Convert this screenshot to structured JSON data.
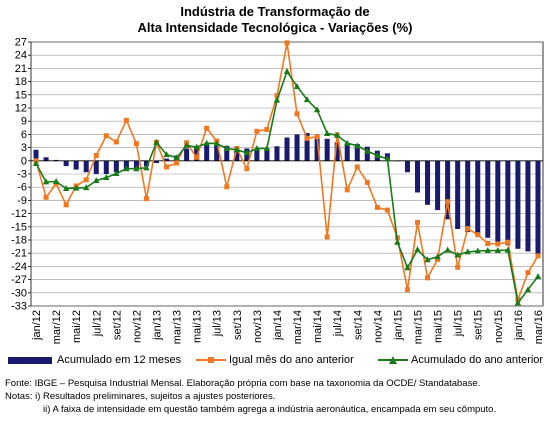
{
  "chart_data": {
    "type": "bar+line",
    "title": [
      "Indústria de Transformação de",
      "Alta Intensidade Tecnológica - Variações (%)"
    ],
    "x": [
      "jan/12",
      "fev/12",
      "mar/12",
      "abr/12",
      "mai/12",
      "jun/12",
      "jul/12",
      "ago/12",
      "set/12",
      "out/12",
      "nov/12",
      "dez/12",
      "jan/13",
      "fev/13",
      "mar/13",
      "abr/13",
      "mai/13",
      "jun/13",
      "jul/13",
      "ago/13",
      "set/13",
      "out/13",
      "nov/13",
      "dez/13",
      "jan/14",
      "fev/14",
      "mar/14",
      "abr/14",
      "mai/14",
      "jun/14",
      "jul/14",
      "ago/14",
      "set/14",
      "out/14",
      "nov/14",
      "dez/14",
      "jan/15",
      "fev/15",
      "mar/15",
      "abr/15",
      "mai/15",
      "jun/15",
      "jul/15",
      "ago/15",
      "set/15",
      "out/15",
      "nov/15",
      "dez/15",
      "jan/16",
      "fev/16",
      "mar/16"
    ],
    "xtick_labels": [
      "jan/12",
      "mar/12",
      "mai/12",
      "jul/12",
      "set/12",
      "nov/12",
      "jan/13",
      "mar/13",
      "mai/13",
      "jul/13",
      "set/13",
      "nov/13",
      "jan/14",
      "mar/14",
      "mai/14",
      "jul/14",
      "set/14",
      "nov/14",
      "jan/15",
      "mar/15",
      "mai/15",
      "jul/15",
      "set/15",
      "nov/15",
      "jan/16",
      "mar/16"
    ],
    "yticks": [
      27,
      24,
      21,
      18,
      15,
      12,
      9,
      6,
      3,
      0,
      -3,
      -6,
      -9,
      -12,
      -15,
      -18,
      -21,
      -24,
      -27,
      -30,
      -33
    ],
    "ylim": [
      -33,
      27
    ],
    "grid": "horizontal",
    "legend_position": "bottom",
    "series": [
      {
        "name": "Acumulado em 12 meses",
        "type": "bar",
        "color": "#1a1a6e",
        "values": [
          2.5,
          0.8,
          0.2,
          -1.2,
          -2,
          -2.6,
          -3,
          -3,
          -2.6,
          -2.2,
          -1.8,
          -1.3,
          -0.5,
          0.5,
          1.2,
          2.8,
          3.2,
          3.5,
          3.6,
          3.4,
          3,
          2.8,
          2.7,
          2.8,
          3.3,
          5.3,
          6,
          6.3,
          5.5,
          5,
          4.2,
          4,
          3.8,
          3.2,
          2.3,
          1.7,
          0,
          -2.6,
          -7.2,
          -10,
          -11.2,
          -13.3,
          -15.5,
          -16.2,
          -16.8,
          -17.5,
          -18.4,
          -19.2,
          -20,
          -20.6,
          -21.3
        ]
      },
      {
        "name": "Igual mês do ano anterior",
        "type": "line",
        "color": "#f07820",
        "marker": "square",
        "values": [
          0,
          -8.3,
          -5.2,
          -10,
          -5.7,
          -4.3,
          1.2,
          5.7,
          4.3,
          9.2,
          3.9,
          -8.6,
          4.2,
          -1.4,
          -0.5,
          4.1,
          0.8,
          7.4,
          4.5,
          -5.9,
          2.8,
          -1.8,
          6.7,
          7.1,
          14.8,
          26.8,
          10.7,
          5.1,
          5.5,
          -17.3,
          5.9,
          -6.6,
          -1.4,
          -4.9,
          -10.6,
          -11.2,
          -17.5,
          -29.3,
          -14,
          -26.6,
          -22.4,
          -9.3,
          -24.2,
          -15.4,
          -16.8,
          -18.8,
          -18.9,
          -18.5,
          -31.6,
          -25.4,
          -21.6
        ]
      },
      {
        "name": "Acumulado do ano anterior",
        "type": "line",
        "color": "#1a7a1a",
        "marker": "triangle",
        "values": [
          -0.6,
          -4.8,
          -4.7,
          -6.3,
          -6.2,
          -6.1,
          -4.5,
          -3.8,
          -2.9,
          -1.8,
          -1.8,
          -1.6,
          4.2,
          1.4,
          0.7,
          3.5,
          3.1,
          4,
          3.9,
          2.8,
          2.5,
          1.8,
          2.8,
          2.8,
          13.8,
          20.3,
          16.9,
          13.9,
          11.6,
          6.2,
          5.8,
          4,
          3.4,
          2.2,
          1.2,
          0.4,
          -18.5,
          -24.3,
          -20.2,
          -22.5,
          -21.8,
          -20.3,
          -21.4,
          -20.7,
          -20.5,
          -20.4,
          -20.4,
          -20.3,
          -32.3,
          -29.3,
          -26.3
        ]
      }
    ]
  },
  "legend": [
    "Acumulado em 12 meses",
    "Igual mês do ano anterior",
    "Acumulado do ano anterior"
  ],
  "notes": {
    "fonte": "Fonte: IBGE – Pesquisa Industrial Mensal. Elaboração própria com base na taxonomia da OCDE/ Standatabase.",
    "notas": "Notas: i) Resultados preliminares, sujeitos a ajustes posteriores.",
    "nota2": "ii) A faixa de intensidade em questão também agrega a indústria aeronáutica, encampada em seu cômputo."
  }
}
